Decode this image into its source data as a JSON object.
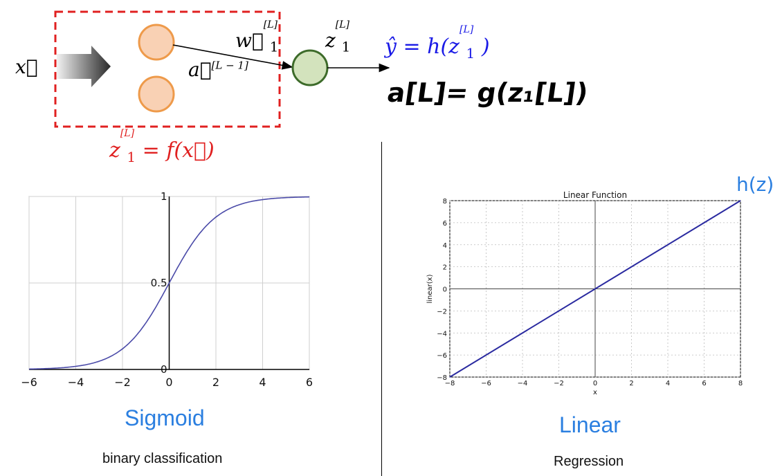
{
  "diagram": {
    "input_label": "x⃗",
    "weight_label": "w⃗",
    "weight_sub": "1",
    "weight_sup": "[L]",
    "activation_label": "a⃗",
    "activation_sup": "[L − 1]",
    "z_label": "z",
    "z_sub": "1",
    "z_sup": "[L]",
    "output_formula": "ŷ = h(z",
    "output_sub": "1",
    "output_sup": "[L]",
    "output_close": ")",
    "handwritten_formula": "a[L]= g(z₁[L])",
    "f_formula_left": "z",
    "f_formula_sub": "1",
    "f_formula_sup": "[L]",
    "f_formula_right": "= f(x⃗)",
    "hz_label": "h(z)",
    "colors": {
      "dashed_box": "#e02020",
      "input_node_fill": "#f9d1b4",
      "input_node_stroke": "#ee9a4a",
      "output_node_fill": "#d3e3bd",
      "output_node_stroke": "#3d6b2a",
      "output_text": "#1a1ae6",
      "f_text": "#e02020",
      "hz_text": "#2b7fe0"
    }
  },
  "sigmoid_panel": {
    "caption": "Sigmoid",
    "subcaption": "binary classification"
  },
  "linear_panel": {
    "caption": "Linear",
    "subcaption": "Regression"
  },
  "chart_data": [
    {
      "type": "line",
      "title": "",
      "xlabel": "",
      "ylabel": "",
      "xlim": [
        -6,
        6
      ],
      "ylim": [
        0,
        1
      ],
      "x_ticks": [
        -6,
        -4,
        -2,
        0,
        2,
        4,
        6
      ],
      "y_ticks_labeled": [
        0,
        0.5,
        1
      ],
      "y_tick_labels": [
        "0",
        "0.5",
        "1"
      ],
      "grid": true,
      "series": [
        {
          "function": "sigmoid",
          "x": [
            -6,
            -4,
            -2,
            0,
            2,
            4,
            6
          ],
          "y": [
            0.0025,
            0.018,
            0.119,
            0.5,
            0.881,
            0.982,
            0.9975
          ]
        }
      ]
    },
    {
      "type": "line",
      "title": "Linear Function",
      "xlabel": "x",
      "ylabel": "linear(x)",
      "xlim": [
        -8,
        8
      ],
      "ylim": [
        -8,
        8
      ],
      "x_ticks": [
        -8,
        -6,
        -4,
        -2,
        0,
        2,
        4,
        6,
        8
      ],
      "y_ticks": [
        -8,
        -6,
        -4,
        -2,
        0,
        2,
        4,
        6,
        8
      ],
      "grid": true,
      "series": [
        {
          "function": "identity",
          "x": [
            -8,
            8
          ],
          "y": [
            -8,
            8
          ]
        }
      ]
    }
  ]
}
